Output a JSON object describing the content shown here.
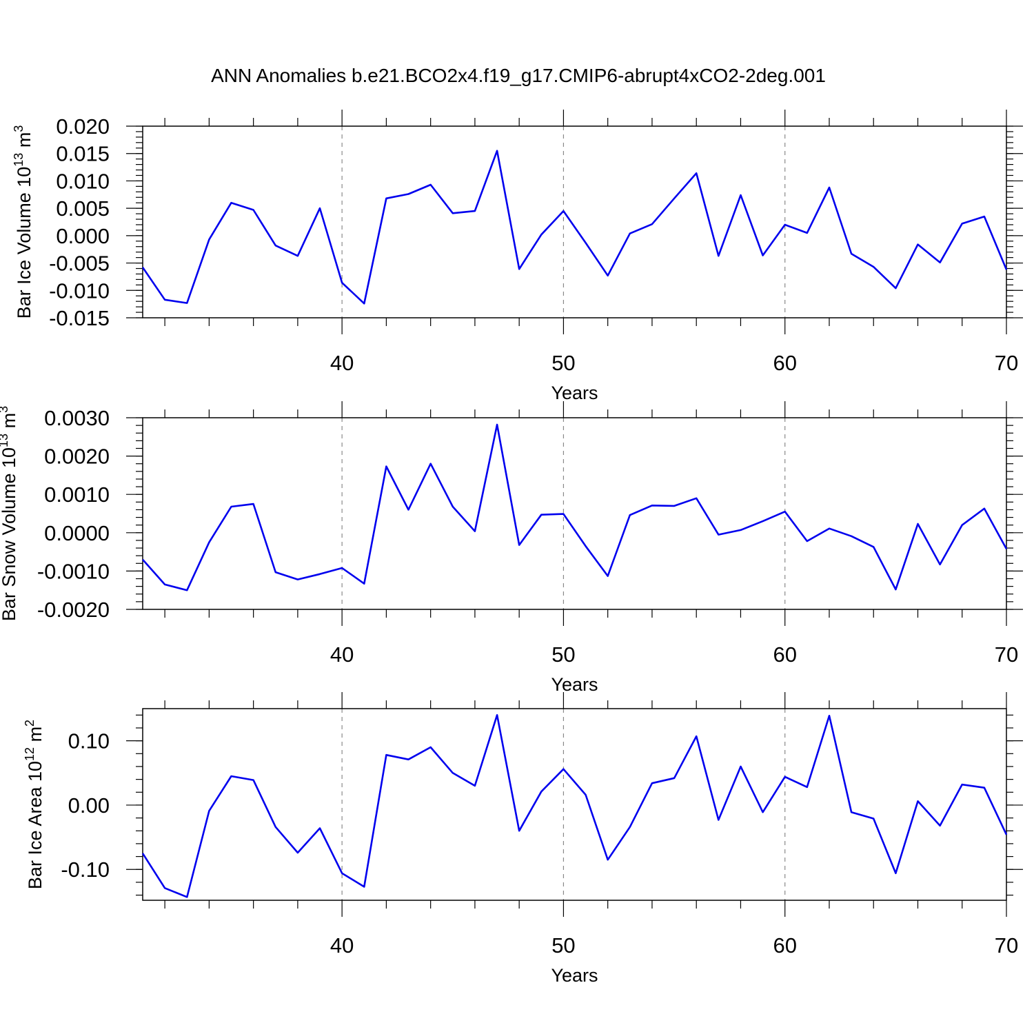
{
  "title": "ANN Anomalies b.e21.BCO2x4.f19_g17.CMIP6-abrupt4xCO2-2deg.001",
  "colors": {
    "line": "#0000ee",
    "frame": "#000000",
    "grid": "#888888"
  },
  "chart_data": [
    {
      "type": "line",
      "xlabel": "Years",
      "ylabel": "Bar Ice Volume 10",
      "ylabel_exp": "13",
      "ylabel_unit": " m",
      "ylabel_unit_exp": "3",
      "xlim": [
        31,
        70
      ],
      "ylim": [
        -0.015,
        0.02
      ],
      "xticks": [
        40,
        50,
        60,
        70
      ],
      "yticks": [
        -0.015,
        -0.01,
        -0.005,
        0.0,
        0.005,
        0.01,
        0.015,
        0.02
      ],
      "ytick_labels": [
        "-0.015",
        "-0.010",
        "-0.005",
        "0.000",
        "0.005",
        "0.010",
        "0.015",
        "0.020"
      ],
      "yminor": 0.001,
      "grid": "x-dashed",
      "x": [
        31,
        32,
        33,
        34,
        35,
        36,
        37,
        38,
        39,
        40,
        41,
        42,
        43,
        44,
        45,
        46,
        47,
        48,
        49,
        50,
        51,
        52,
        53,
        54,
        55,
        56,
        57,
        58,
        59,
        60,
        61,
        62,
        63,
        64,
        65,
        66,
        67,
        68,
        69,
        70
      ],
      "values": [
        -0.0058,
        -0.0117,
        -0.0123,
        -0.0007,
        0.006,
        0.0047,
        -0.0018,
        -0.0037,
        0.005,
        -0.0086,
        -0.0124,
        0.0068,
        0.0076,
        0.0093,
        0.0041,
        0.0045,
        0.0155,
        -0.0061,
        0.0002,
        0.0045,
        -0.0013,
        -0.0073,
        0.0004,
        0.0021,
        0.0068,
        0.0114,
        -0.0037,
        0.0074,
        -0.0036,
        0.002,
        0.0005,
        0.0088,
        -0.0033,
        -0.0057,
        -0.0096,
        -0.0016,
        -0.0049,
        0.0022,
        0.0035,
        -0.0062
      ]
    },
    {
      "type": "line",
      "xlabel": "Years",
      "ylabel": "Bar Snow Volume 10",
      "ylabel_exp": "13",
      "ylabel_unit": " m",
      "ylabel_unit_exp": "3",
      "xlim": [
        31,
        70
      ],
      "ylim": [
        -0.002,
        0.003
      ],
      "xticks": [
        40,
        50,
        60,
        70
      ],
      "yticks": [
        -0.002,
        -0.001,
        0.0,
        0.001,
        0.002,
        0.003
      ],
      "ytick_labels": [
        "-0.0020",
        "-0.0010",
        "0.0000",
        "0.0010",
        "0.0020",
        "0.0030"
      ],
      "yminor": 0.0002,
      "grid": "x-dashed",
      "x": [
        31,
        32,
        33,
        34,
        35,
        36,
        37,
        38,
        39,
        40,
        41,
        42,
        43,
        44,
        45,
        46,
        47,
        48,
        49,
        50,
        51,
        52,
        53,
        54,
        55,
        56,
        57,
        58,
        59,
        60,
        61,
        62,
        63,
        64,
        65,
        66,
        67,
        68,
        69,
        70
      ],
      "values": [
        -0.0007,
        -0.00135,
        -0.0015,
        -0.00025,
        0.00068,
        0.00075,
        -0.00103,
        -0.00122,
        -0.00108,
        -0.00092,
        -0.00133,
        0.00173,
        0.0006,
        0.0018,
        0.00068,
        4e-05,
        0.00282,
        -0.00032,
        0.00047,
        0.00049,
        -0.00035,
        -0.00113,
        0.00046,
        0.00071,
        0.0007,
        0.0009,
        -5e-05,
        7e-05,
        0.0003,
        0.00055,
        -0.00022,
        0.00011,
        -9e-05,
        -0.00037,
        -0.00148,
        0.00023,
        -0.00083,
        0.0002,
        0.00063,
        -0.00042
      ]
    },
    {
      "type": "line",
      "xlabel": "Years",
      "ylabel": "Bar Ice Area 10",
      "ylabel_exp": "12",
      "ylabel_unit": " m",
      "ylabel_unit_exp": "2",
      "xlim": [
        31,
        70
      ],
      "ylim": [
        -0.148,
        0.15
      ],
      "xticks": [
        40,
        50,
        60,
        70
      ],
      "yticks": [
        -0.1,
        0.0,
        0.1
      ],
      "ytick_labels": [
        "-0.10",
        "0.00",
        "0.10"
      ],
      "yminor": 0.02,
      "grid": "x-dashed",
      "x": [
        31,
        32,
        33,
        34,
        35,
        36,
        37,
        38,
        39,
        40,
        41,
        42,
        43,
        44,
        45,
        46,
        47,
        48,
        49,
        50,
        51,
        52,
        53,
        54,
        55,
        56,
        57,
        58,
        59,
        60,
        61,
        62,
        63,
        64,
        65,
        66,
        67,
        68,
        69,
        70
      ],
      "values": [
        -0.075,
        -0.129,
        -0.143,
        -0.009,
        0.045,
        0.039,
        -0.034,
        -0.074,
        -0.036,
        -0.106,
        -0.127,
        0.078,
        0.071,
        0.09,
        0.05,
        0.03,
        0.14,
        -0.04,
        0.021,
        0.056,
        0.016,
        -0.085,
        -0.034,
        0.034,
        0.042,
        0.107,
        -0.023,
        0.06,
        -0.011,
        0.044,
        0.028,
        0.139,
        -0.011,
        -0.021,
        -0.106,
        0.006,
        -0.032,
        0.032,
        0.027,
        -0.046
      ]
    }
  ]
}
